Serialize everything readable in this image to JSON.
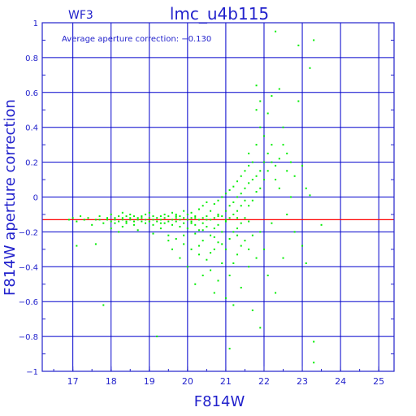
{
  "chart_data": {
    "type": "scatter",
    "title": "lmc_u4b115",
    "subtitle": "WF3",
    "annotation": "Average aperture correction: −0.130",
    "xlabel": "F814W",
    "ylabel": "F814W aperture correction",
    "xlim": [
      16.2,
      25.4
    ],
    "ylim": [
      -1,
      1
    ],
    "x_ticks": [
      "17",
      "18",
      "19",
      "20",
      "21",
      "22",
      "23",
      "24",
      "25"
    ],
    "y_ticks": [
      "1",
      "0.8",
      "0.6",
      "0.4",
      "0.2",
      "0",
      "−0.2",
      "−0.4",
      "−0.6",
      "−0.8",
      "−1"
    ],
    "x_tick_values": [
      17,
      18,
      19,
      20,
      21,
      22,
      23,
      24,
      25
    ],
    "y_tick_values": [
      1,
      0.8,
      0.6,
      0.4,
      0.2,
      0,
      -0.2,
      -0.4,
      -0.6,
      -0.8,
      -1
    ],
    "reference_line": {
      "y": -0.13,
      "color": "#ff0000"
    },
    "grid": true,
    "colors": {
      "axis": "#2222cc",
      "grid": "#0000cc",
      "points": "#00ee00",
      "reference": "#ff0000"
    },
    "points": [
      [
        16.9,
        -0.13
      ],
      [
        17.0,
        -0.12
      ],
      [
        17.1,
        -0.14
      ],
      [
        17.1,
        -0.28
      ],
      [
        17.2,
        -0.11
      ],
      [
        17.3,
        -0.13
      ],
      [
        17.3,
        -0.13
      ],
      [
        17.4,
        -0.12
      ],
      [
        17.5,
        -0.16
      ],
      [
        17.6,
        -0.13
      ],
      [
        17.6,
        -0.27
      ],
      [
        17.7,
        -0.13
      ],
      [
        17.7,
        -0.11
      ],
      [
        17.8,
        -0.62
      ],
      [
        17.8,
        -0.15
      ],
      [
        17.9,
        -0.13
      ],
      [
        17.9,
        -0.12
      ],
      [
        18.0,
        -0.14
      ],
      [
        18.0,
        -0.18
      ],
      [
        18.0,
        -0.1
      ],
      [
        18.1,
        -0.13
      ],
      [
        18.1,
        -0.15
      ],
      [
        18.1,
        -0.12
      ],
      [
        18.2,
        -0.11
      ],
      [
        18.2,
        -0.14
      ],
      [
        18.2,
        -0.2
      ],
      [
        18.3,
        -0.12
      ],
      [
        18.3,
        -0.13
      ],
      [
        18.3,
        -0.09
      ],
      [
        18.3,
        -0.17
      ],
      [
        18.4,
        -0.14
      ],
      [
        18.4,
        -0.11
      ],
      [
        18.4,
        -0.15
      ],
      [
        18.5,
        -0.12
      ],
      [
        18.5,
        -0.13
      ],
      [
        18.5,
        -0.1
      ],
      [
        18.6,
        -0.14
      ],
      [
        18.6,
        -0.16
      ],
      [
        18.6,
        -0.11
      ],
      [
        18.7,
        -0.12
      ],
      [
        18.7,
        -0.13
      ],
      [
        18.7,
        -0.19
      ],
      [
        18.8,
        -0.14
      ],
      [
        18.8,
        -0.11
      ],
      [
        18.8,
        -0.12
      ],
      [
        18.9,
        -0.13
      ],
      [
        18.9,
        -0.15
      ],
      [
        18.9,
        -0.1
      ],
      [
        19.0,
        -0.12
      ],
      [
        19.0,
        -0.14
      ],
      [
        19.0,
        -0.09
      ],
      [
        19.1,
        -0.13
      ],
      [
        19.1,
        -0.11
      ],
      [
        19.1,
        -0.16
      ],
      [
        19.1,
        -0.21
      ],
      [
        19.2,
        -0.12
      ],
      [
        19.2,
        -0.14
      ],
      [
        19.2,
        -0.8
      ],
      [
        19.3,
        -0.11
      ],
      [
        19.3,
        -0.13
      ],
      [
        19.3,
        -0.18
      ],
      [
        19.4,
        -0.12
      ],
      [
        19.4,
        -0.1
      ],
      [
        19.4,
        -0.15
      ],
      [
        19.5,
        -0.14
      ],
      [
        19.5,
        -0.11
      ],
      [
        19.5,
        -0.22
      ],
      [
        19.6,
        -0.13
      ],
      [
        19.6,
        -0.09
      ],
      [
        19.6,
        -0.16
      ],
      [
        19.6,
        -0.3
      ],
      [
        19.7,
        -0.12
      ],
      [
        19.7,
        -0.14
      ],
      [
        19.7,
        -0.1
      ],
      [
        19.7,
        -0.24
      ],
      [
        19.8,
        -0.13
      ],
      [
        19.8,
        -0.11
      ],
      [
        19.8,
        -0.17
      ],
      [
        19.8,
        -0.35
      ],
      [
        19.9,
        -0.12
      ],
      [
        19.9,
        -0.15
      ],
      [
        19.9,
        -0.08
      ],
      [
        19.9,
        -0.27
      ],
      [
        20.0,
        -0.13
      ],
      [
        20.0,
        -0.1
      ],
      [
        20.0,
        -0.18
      ],
      [
        20.0,
        -0.4
      ],
      [
        20.1,
        -0.12
      ],
      [
        20.1,
        -0.14
      ],
      [
        20.1,
        -0.09
      ],
      [
        20.1,
        -0.3
      ],
      [
        20.2,
        -0.11
      ],
      [
        20.2,
        -0.16
      ],
      [
        20.2,
        -0.21
      ],
      [
        20.2,
        -0.5
      ],
      [
        20.3,
        -0.13
      ],
      [
        20.3,
        -0.07
      ],
      [
        20.3,
        -0.19
      ],
      [
        20.3,
        -0.33
      ],
      [
        20.4,
        -0.12
      ],
      [
        20.4,
        -0.15
      ],
      [
        20.4,
        -0.05
      ],
      [
        20.4,
        -0.25
      ],
      [
        20.4,
        -0.45
      ],
      [
        20.5,
        -0.11
      ],
      [
        20.5,
        -0.17
      ],
      [
        20.5,
        -0.03
      ],
      [
        20.5,
        -0.36
      ],
      [
        20.6,
        -0.13
      ],
      [
        20.6,
        -0.08
      ],
      [
        20.6,
        -0.22
      ],
      [
        20.6,
        -0.42
      ],
      [
        20.7,
        -0.12
      ],
      [
        20.7,
        -0.04
      ],
      [
        20.7,
        -0.18
      ],
      [
        20.7,
        -0.3
      ],
      [
        20.7,
        -0.55
      ],
      [
        20.8,
        -0.1
      ],
      [
        20.8,
        -0.02
      ],
      [
        20.8,
        -0.16
      ],
      [
        20.8,
        -0.26
      ],
      [
        20.8,
        -0.48
      ],
      [
        20.9,
        -0.11
      ],
      [
        20.9,
        0.0
      ],
      [
        20.9,
        -0.2
      ],
      [
        20.9,
        -0.38
      ],
      [
        21.0,
        -0.08
      ],
      [
        21.0,
        0.02
      ],
      [
        21.0,
        -0.14
      ],
      [
        21.0,
        -0.3
      ],
      [
        21.0,
        -0.58
      ],
      [
        21.1,
        -0.05
      ],
      [
        21.1,
        0.04
      ],
      [
        21.1,
        -0.12
      ],
      [
        21.1,
        -0.24
      ],
      [
        21.1,
        -0.45
      ],
      [
        21.1,
        -0.87
      ],
      [
        21.2,
        -0.03
      ],
      [
        21.2,
        0.06
      ],
      [
        21.2,
        -0.1
      ],
      [
        21.2,
        -0.2
      ],
      [
        21.2,
        -0.38
      ],
      [
        21.2,
        -0.62
      ],
      [
        21.3,
        0.0
      ],
      [
        21.3,
        0.09
      ],
      [
        21.3,
        -0.08
      ],
      [
        21.3,
        -0.18
      ],
      [
        21.3,
        -0.33
      ],
      [
        21.4,
        0.02
      ],
      [
        21.4,
        0.12
      ],
      [
        21.4,
        -0.05
      ],
      [
        21.4,
        -0.15
      ],
      [
        21.4,
        -0.28
      ],
      [
        21.4,
        -0.52
      ],
      [
        21.5,
        0.05
      ],
      [
        21.5,
        0.15
      ],
      [
        21.5,
        -0.02
      ],
      [
        21.5,
        -0.12
      ],
      [
        21.5,
        -0.25
      ],
      [
        21.6,
        0.08
      ],
      [
        21.6,
        0.18
      ],
      [
        21.6,
        0.25
      ],
      [
        21.6,
        -0.05
      ],
      [
        21.6,
        -0.4
      ],
      [
        21.7,
        0.1
      ],
      [
        21.7,
        0.2
      ],
      [
        21.7,
        -0.02
      ],
      [
        21.7,
        -0.22
      ],
      [
        21.7,
        -0.65
      ],
      [
        21.8,
        0.12
      ],
      [
        21.8,
        0.3
      ],
      [
        21.8,
        0.5
      ],
      [
        21.8,
        0.64
      ],
      [
        21.8,
        0.03
      ],
      [
        21.8,
        -0.35
      ],
      [
        21.9,
        0.15
      ],
      [
        21.9,
        0.55
      ],
      [
        21.9,
        0.4
      ],
      [
        21.9,
        0.05
      ],
      [
        21.9,
        -0.75
      ],
      [
        22.0,
        0.2
      ],
      [
        22.0,
        0.35
      ],
      [
        22.0,
        0.1
      ],
      [
        22.0,
        -0.3
      ],
      [
        22.1,
        0.25
      ],
      [
        22.1,
        0.48
      ],
      [
        22.1,
        0.15
      ],
      [
        22.1,
        -0.45
      ],
      [
        22.2,
        0.3
      ],
      [
        22.2,
        0.58
      ],
      [
        22.2,
        0.2
      ],
      [
        22.2,
        -0.15
      ],
      [
        22.3,
        0.18
      ],
      [
        22.3,
        0.95
      ],
      [
        22.3,
        0.1
      ],
      [
        22.3,
        -0.55
      ],
      [
        22.4,
        0.22
      ],
      [
        22.4,
        0.62
      ],
      [
        22.4,
        0.05
      ],
      [
        22.5,
        0.3
      ],
      [
        22.5,
        0.4
      ],
      [
        22.5,
        -0.35
      ],
      [
        22.6,
        0.15
      ],
      [
        22.6,
        0.25
      ],
      [
        22.6,
        -0.1
      ],
      [
        22.7,
        0.2
      ],
      [
        22.7,
        0.0
      ],
      [
        22.8,
        0.12
      ],
      [
        22.8,
        -0.2
      ],
      [
        22.9,
        0.87
      ],
      [
        22.9,
        0.55
      ],
      [
        23.0,
        0.18
      ],
      [
        23.0,
        -0.28
      ],
      [
        23.1,
        0.05
      ],
      [
        23.1,
        -0.38
      ],
      [
        23.2,
        0.74
      ],
      [
        23.2,
        0.01
      ],
      [
        23.3,
        0.9
      ],
      [
        23.3,
        -0.83
      ],
      [
        23.3,
        -0.95
      ],
      [
        23.5,
        -0.16
      ],
      [
        19.5,
        -0.25
      ],
      [
        19.9,
        -0.22
      ],
      [
        20.3,
        -0.28
      ],
      [
        20.6,
        -0.32
      ],
      [
        20.9,
        -0.27
      ],
      [
        21.3,
        -0.22
      ],
      [
        21.6,
        -0.3
      ],
      [
        21.9,
        -0.2
      ],
      [
        20.2,
        -0.12
      ],
      [
        20.5,
        -0.13
      ],
      [
        20.8,
        -0.11
      ],
      [
        21.0,
        -0.13
      ],
      [
        21.3,
        -0.12
      ],
      [
        21.6,
        -0.14
      ],
      [
        19.3,
        -0.15
      ],
      [
        19.7,
        -0.11
      ],
      [
        20.1,
        -0.15
      ],
      [
        20.4,
        -0.19
      ],
      [
        20.7,
        -0.23
      ]
    ]
  }
}
